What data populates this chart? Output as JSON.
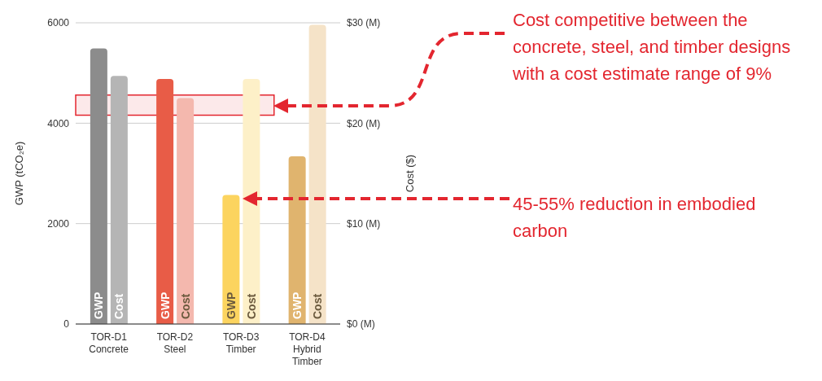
{
  "chart_data": {
    "type": "bar",
    "categories": [
      "TOR-D1\nConcrete",
      "TOR-D2\nSteel",
      "TOR-D3\nTimber",
      "TOR-D4\nHybrid\nTimber"
    ],
    "series": [
      {
        "name": "GWP",
        "values": [
          5490,
          4880,
          2570,
          3340
        ],
        "colors": [
          "#8c8c8c",
          "#e85c47",
          "#fcd45f",
          "#e0b46e"
        ]
      },
      {
        "name": "Cost",
        "axis": "y2",
        "values": [
          24.7,
          22.5,
          24.4,
          29.8
        ],
        "colors": [
          "#b5b5b5",
          "#f4b8ae",
          "#fdf0c8",
          "#f5e3c8"
        ]
      }
    ],
    "ylabel": "GWP (tCO₂e)",
    "y2label": "Cost ($)",
    "ylim": [
      0,
      6000
    ],
    "yticks": [
      0,
      2000,
      4000,
      6000
    ],
    "y2lim": [
      0,
      30
    ],
    "y2ticks": [
      {
        "value": 0,
        "label": "$0 (M)"
      },
      {
        "value": 10,
        "label": "$10 (M)"
      },
      {
        "value": 20,
        "label": "$20 (M)"
      },
      {
        "value": 30,
        "label": "$30 (M)"
      }
    ],
    "grid": "y",
    "bands": [
      {
        "axis": "y2",
        "from": 20.8,
        "to": 22.8,
        "color": "#e3262f"
      }
    ],
    "annotations": [
      "Cost competitive between the concrete, steel, and timber designs with a cost estimate range of 9%",
      "45-55% reduction in embodied carbon"
    ]
  }
}
